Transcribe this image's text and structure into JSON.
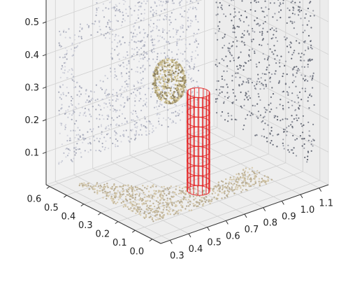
{
  "chart_data": {
    "type": "scatter",
    "projection": "3d",
    "grid": true,
    "title": "",
    "xlabel": "",
    "ylabel": "",
    "zlabel": "",
    "xlim": [
      0.25,
      1.15
    ],
    "ylim": [
      -0.05,
      0.62
    ],
    "zlim": [
      0.0,
      0.58
    ],
    "x_ticks": [
      "0.3",
      "0.4",
      "0.5",
      "0.6",
      "0.7",
      "0.8",
      "0.9",
      "1.0",
      "1.1"
    ],
    "y_ticks": [
      "0.0",
      "0.1",
      "0.2",
      "0.3",
      "0.4",
      "0.5",
      "0.6"
    ],
    "z_ticks": [
      "0.1",
      "0.2",
      "0.3",
      "0.4",
      "0.5"
    ],
    "x_tick_values": [
      0.3,
      0.4,
      0.5,
      0.6,
      0.7,
      0.8,
      0.9,
      1.0,
      1.1
    ],
    "y_tick_values": [
      0.0,
      0.1,
      0.2,
      0.3,
      0.4,
      0.5,
      0.6
    ],
    "z_tick_values": [
      0.1,
      0.2,
      0.3,
      0.4,
      0.5
    ],
    "series": [
      {
        "kind": "point_cloud",
        "color": "#b4a58a",
        "description_free": true
      },
      {
        "kind": "cylinder_wireframe",
        "color": "#e32222",
        "center": [
          0.7,
          0.22
        ],
        "radius": 0.045,
        "z_range": [
          0.0,
          0.3
        ]
      },
      {
        "kind": "sphere_cloud",
        "color": "#c7b98f",
        "center": [
          0.78,
          0.48,
          0.24
        ],
        "radius": 0.06
      }
    ]
  }
}
